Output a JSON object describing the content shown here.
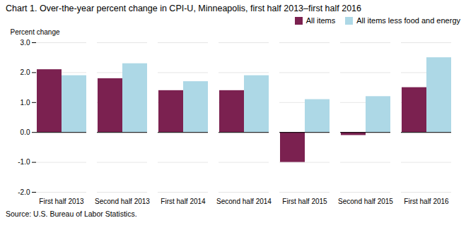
{
  "chart_data": {
    "type": "bar",
    "title": "Chart 1. Over-the-year percent change in CPI-U, Minneapolis, first half 2013–first  half 2016",
    "ylabel": "Percent change",
    "source": "Source: U.S. Bureau of Labor Statistics.",
    "categories": [
      "First half 2013",
      "Second half 2013",
      "First half 2014",
      "Second half 2014",
      "First half 2015",
      "Second half 2015",
      "First half 2016"
    ],
    "series": [
      {
        "name": "All items",
        "color": "#7b2150",
        "values": [
          2.1,
          1.8,
          1.4,
          1.4,
          -1.0,
          -0.1,
          1.5
        ]
      },
      {
        "name": "All items less food and energy",
        "color": "#add8e6",
        "values": [
          1.9,
          2.3,
          1.7,
          1.9,
          1.1,
          1.2,
          2.5
        ]
      }
    ],
    "ylim": [
      -2.0,
      3.0
    ],
    "yticks": [
      {
        "value": -2.0,
        "label": "-2.0"
      },
      {
        "value": -1.0,
        "label": "-1.0"
      },
      {
        "value": 0.0,
        "label": "0.0"
      },
      {
        "value": 1.0,
        "label": "1.0"
      },
      {
        "value": 2.0,
        "label": "2.0"
      },
      {
        "value": 3.0,
        "label": "3.0"
      }
    ],
    "grid": true,
    "legend": "upper right"
  }
}
